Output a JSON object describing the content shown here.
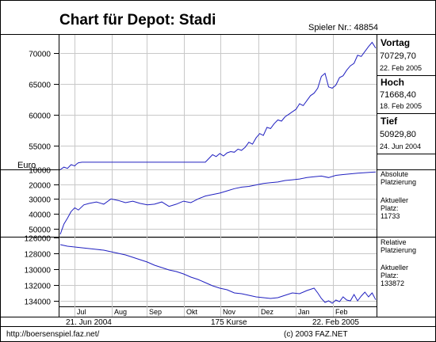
{
  "title": "Chart für Depot:  Stadi",
  "player_label": "Spieler Nr.: 48854",
  "footer": {
    "url": "http://boersenspiel.faz.net/",
    "copyright": "(c) 2003 FAZ.NET"
  },
  "side_panels": {
    "vortag": {
      "label": "Vortag",
      "value": "70729,70",
      "date": "22. Feb 2005"
    },
    "hoch": {
      "label": "Hoch",
      "value": "71668,40",
      "date": "18. Feb 2005"
    },
    "tief": {
      "label": "Tief",
      "value": "50929,80",
      "date": "24. Jun 2004"
    }
  },
  "abs_panel": {
    "title_line1": "Absolute",
    "title_line2": "Platzierung",
    "sub_line1": "Aktueller",
    "sub_line2": "Platz:",
    "value": "11733"
  },
  "rel_panel": {
    "title_line1": "Relative",
    "title_line2": "Platzierung",
    "sub_line1": "Aktueller",
    "sub_line2": "Platz:",
    "value": "133872"
  },
  "colors": {
    "line": "#2020c0",
    "grid": "#c8c8c8",
    "frame": "#000000"
  },
  "chart_data": [
    {
      "type": "line",
      "title": "Chart für Depot:  Stadi",
      "ylabel": "Euro",
      "y_ticks": [
        55000,
        60000,
        65000,
        70000
      ],
      "y_tick_labels": [
        "55000",
        "60000",
        "65000",
        "70000"
      ],
      "ylim": [
        52000,
        72500
      ],
      "x_ticks": [
        "Jul",
        "Aug",
        "Sep",
        "Okt",
        "Nov",
        "Dez",
        "Jan",
        "Feb"
      ],
      "x_start": "21. Jun 2004",
      "x_end": "22. Feb 2005",
      "x_count_label": "175 Kurse",
      "grid": true,
      "x": [
        0,
        2,
        4,
        6,
        8,
        9,
        10,
        12,
        15,
        20,
        25,
        30,
        35,
        40,
        45,
        50,
        55,
        60,
        65,
        70,
        75,
        80,
        82,
        84,
        86,
        88,
        90,
        92,
        94,
        96,
        98,
        100,
        102,
        104,
        106,
        108,
        110,
        112,
        114,
        116,
        118,
        120,
        122,
        124,
        126,
        128,
        130,
        132,
        134,
        136,
        138,
        140,
        142,
        144,
        146,
        148,
        150,
        152,
        154,
        156,
        158,
        160,
        162,
        164,
        166,
        168,
        170,
        172,
        174
      ],
      "values": [
        51200,
        51600,
        51400,
        52000,
        51800,
        52100,
        52300,
        52400,
        52400,
        52400,
        52400,
        52400,
        52400,
        52400,
        52400,
        52400,
        52400,
        52400,
        52400,
        52400,
        52400,
        52400,
        53000,
        53600,
        53300,
        53800,
        53400,
        53900,
        54100,
        54000,
        54500,
        54300,
        54800,
        55600,
        55300,
        56300,
        57000,
        56700,
        58000,
        57800,
        58600,
        59200,
        59000,
        59700,
        60100,
        60500,
        60900,
        61800,
        61500,
        62300,
        63100,
        63500,
        64300,
        66200,
        66700,
        64500,
        64300,
        64800,
        66000,
        66300,
        67200,
        67900,
        68300,
        69600,
        69400,
        70200,
        71000,
        71668,
        70729
      ]
    },
    {
      "type": "line",
      "title": "Absolute Platzierung",
      "y_ticks": [
        10000,
        20000,
        30000,
        40000,
        50000
      ],
      "y_tick_labels": [
        "10000",
        "20000",
        "30000",
        "40000",
        "50000"
      ],
      "ylim": [
        10000,
        55000
      ],
      "y_inverted": true,
      "x_ticks": [
        "Jul",
        "Aug",
        "Sep",
        "Okt",
        "Nov",
        "Dez",
        "Jan",
        "Feb"
      ],
      "grid": true,
      "x": [
        0,
        2,
        4,
        6,
        8,
        10,
        13,
        16,
        20,
        24,
        28,
        32,
        36,
        40,
        44,
        48,
        52,
        56,
        60,
        64,
        68,
        72,
        76,
        80,
        84,
        88,
        92,
        96,
        100,
        104,
        108,
        112,
        116,
        120,
        124,
        128,
        132,
        136,
        140,
        144,
        148,
        152,
        156,
        160,
        164,
        168,
        172,
        174
      ],
      "values": [
        54000,
        47000,
        43000,
        38500,
        36000,
        37500,
        34000,
        33000,
        32000,
        33500,
        30000,
        31000,
        32500,
        31500,
        33000,
        34000,
        33500,
        32000,
        35000,
        33500,
        31500,
        32500,
        30000,
        28000,
        27000,
        26000,
        24500,
        23000,
        22000,
        21500,
        20500,
        19500,
        19000,
        18500,
        17500,
        17000,
        16500,
        15500,
        15000,
        14500,
        15500,
        14000,
        13500,
        13000,
        12500,
        12200,
        11900,
        11733
      ]
    },
    {
      "type": "line",
      "title": "Relative Platzierung",
      "y_ticks": [
        126000,
        128000,
        130000,
        132000,
        134000
      ],
      "y_tick_labels": [
        "126000",
        "128000",
        "130000",
        "132000",
        "134000"
      ],
      "ylim": [
        126000,
        134600
      ],
      "y_inverted": true,
      "x_ticks": [
        "Jul",
        "Aug",
        "Sep",
        "Okt",
        "Nov",
        "Dez",
        "Jan",
        "Feb"
      ],
      "grid": true,
      "x": [
        0,
        4,
        8,
        12,
        16,
        20,
        24,
        28,
        32,
        36,
        40,
        44,
        48,
        52,
        56,
        60,
        64,
        68,
        72,
        76,
        80,
        84,
        88,
        92,
        96,
        100,
        104,
        108,
        112,
        116,
        120,
        124,
        128,
        132,
        136,
        140,
        142,
        144,
        146,
        148,
        150,
        152,
        154,
        156,
        158,
        160,
        162,
        164,
        166,
        168,
        170,
        172,
        174
      ],
      "values": [
        126900,
        127100,
        127200,
        127300,
        127400,
        127500,
        127600,
        127800,
        128000,
        128200,
        128500,
        128800,
        129100,
        129500,
        129800,
        130100,
        130300,
        130600,
        131000,
        131300,
        131700,
        132100,
        132400,
        132600,
        133000,
        133100,
        133300,
        133500,
        133600,
        133700,
        133600,
        133300,
        133000,
        133100,
        132700,
        132400,
        133000,
        133700,
        134200,
        134000,
        134300,
        133900,
        134100,
        133500,
        133900,
        134000,
        133200,
        134000,
        133400,
        132900,
        133500,
        133000,
        133872
      ]
    }
  ]
}
